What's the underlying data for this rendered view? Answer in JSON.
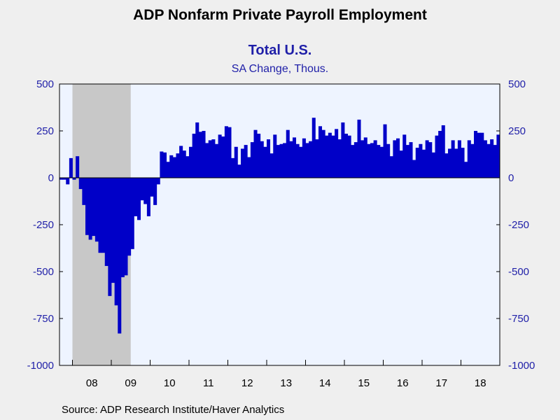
{
  "header": {
    "title": "ADP Nonfarm Private Payroll Employment",
    "subtitle": "Total U.S.",
    "units": "SA Change, Thous."
  },
  "footer": {
    "source": "Source:  ADP Research Institute/Haver Analytics"
  },
  "colors": {
    "bar": "#0000c8",
    "recession": "#c8c8c8",
    "plot_bg": "#eef4ff",
    "axis_text": "#1f1fa8"
  },
  "chart_data": {
    "type": "bar",
    "x_start": "2007-09",
    "frequency": "monthly",
    "y_ticks": [
      500,
      250,
      0,
      -250,
      -500,
      -750,
      -1000
    ],
    "x_tick_labels": [
      "08",
      "09",
      "10",
      "11",
      "12",
      "13",
      "14",
      "15",
      "16",
      "17",
      "18"
    ],
    "ylim": [
      -1000,
      500
    ],
    "dual_y_axis": true,
    "recession_shading": {
      "start": "2008-01",
      "end": "2009-06"
    },
    "values": [
      -10,
      -10,
      -35,
      105,
      -10,
      115,
      -60,
      -145,
      -305,
      -330,
      -310,
      -340,
      -400,
      -400,
      -470,
      -630,
      -560,
      -680,
      -830,
      -530,
      -520,
      -415,
      -380,
      -205,
      -225,
      -120,
      -140,
      -205,
      -100,
      -145,
      -35,
      140,
      135,
      85,
      120,
      110,
      130,
      170,
      145,
      115,
      165,
      235,
      295,
      245,
      250,
      185,
      200,
      205,
      180,
      230,
      220,
      275,
      270,
      105,
      165,
      70,
      155,
      175,
      110,
      190,
      255,
      235,
      195,
      165,
      205,
      130,
      230,
      175,
      180,
      185,
      255,
      195,
      215,
      180,
      165,
      210,
      185,
      195,
      320,
      205,
      275,
      255,
      225,
      240,
      225,
      260,
      205,
      295,
      235,
      225,
      175,
      190,
      310,
      200,
      215,
      180,
      185,
      200,
      175,
      165,
      285,
      180,
      115,
      200,
      210,
      145,
      230,
      175,
      190,
      95,
      160,
      180,
      150,
      200,
      190,
      135,
      225,
      250,
      280,
      130,
      155,
      200,
      155,
      200,
      160,
      85,
      200,
      180,
      250,
      240,
      240,
      200,
      180,
      205,
      175,
      230
    ]
  }
}
